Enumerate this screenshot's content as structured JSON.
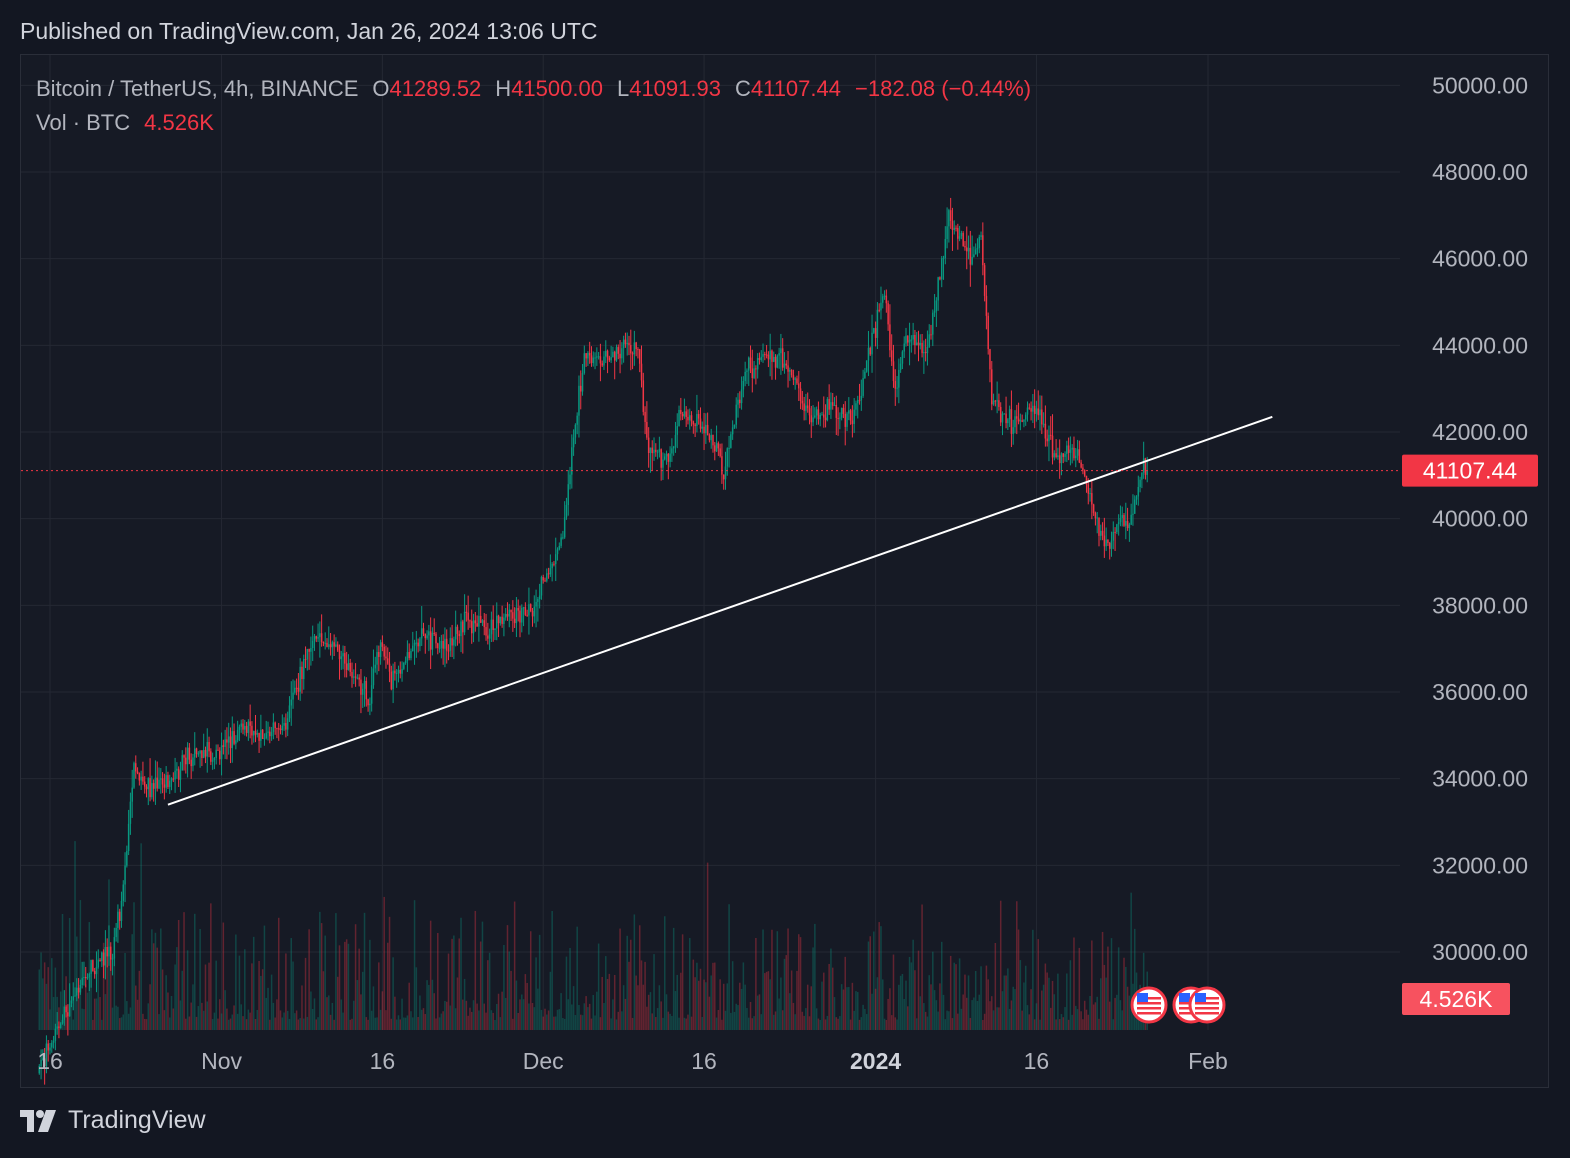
{
  "header": {
    "published": "Published on TradingView.com, Jan 26, 2024 13:06 UTC"
  },
  "legend": {
    "symbol": "Bitcoin / TetherUS, 4h, BINANCE",
    "o_label": "O",
    "o_value": "41289.52",
    "h_label": "H",
    "h_value": "41500.00",
    "l_label": "L",
    "l_value": "41091.93",
    "c_label": "C",
    "c_value": "41107.44",
    "change": "−182.08 (−0.44%)",
    "vol_label": "Vol · BTC",
    "vol_value": "4.526K"
  },
  "price_tag": "41107.44",
  "volume_tag": "4.526K",
  "brand": {
    "name": "TradingView",
    "icon": "tradingview-logo-icon"
  },
  "colors": {
    "up": "#089981",
    "down": "#f23645",
    "background": "#161a25",
    "grid": "#242833",
    "trendline": "#ffffff"
  },
  "chart_data": {
    "type": "candlestick",
    "interval": "4h",
    "y_ticks": [
      "50000.00",
      "48000.00",
      "46000.00",
      "44000.00",
      "42000.00",
      "40000.00",
      "38000.00",
      "36000.00",
      "34000.00",
      "32000.00",
      "30000.00"
    ],
    "ylim": [
      28200,
      50700
    ],
    "x_ticks": [
      {
        "label": "16",
        "date": "2023-10-16",
        "bold": false
      },
      {
        "label": "Nov",
        "date": "2023-11-01",
        "bold": false
      },
      {
        "label": "16",
        "date": "2023-11-16",
        "bold": false
      },
      {
        "label": "Dec",
        "date": "2023-12-01",
        "bold": false
      },
      {
        "label": "16",
        "date": "2023-12-16",
        "bold": false
      },
      {
        "label": "2024",
        "date": "2024-01-01",
        "bold": true
      },
      {
        "label": "16",
        "date": "2024-01-16",
        "bold": false
      },
      {
        "label": "Feb",
        "date": "2024-02-01",
        "bold": false
      }
    ],
    "last_price": 41107.44,
    "trendline": [
      [
        "2023-10-27",
        33400
      ],
      [
        "2024-02-07",
        42350
      ]
    ],
    "price_path": [
      [
        "2023-10-15",
        27200
      ],
      [
        "2023-10-17",
        28300
      ],
      [
        "2023-10-20",
        29600
      ],
      [
        "2023-10-22",
        30000
      ],
      [
        "2023-10-23",
        31500
      ],
      [
        "2023-10-24",
        34300
      ],
      [
        "2023-10-25",
        33800
      ],
      [
        "2023-10-27",
        33900
      ],
      [
        "2023-10-29",
        34500
      ],
      [
        "2023-11-01",
        34600
      ],
      [
        "2023-11-03",
        35200
      ],
      [
        "2023-11-05",
        35000
      ],
      [
        "2023-11-07",
        35200
      ],
      [
        "2023-11-09",
        36800
      ],
      [
        "2023-11-10",
        37200
      ],
      [
        "2023-11-12",
        37000
      ],
      [
        "2023-11-14",
        36200
      ],
      [
        "2023-11-15",
        35800
      ],
      [
        "2023-11-16",
        37300
      ],
      [
        "2023-11-17",
        36200
      ],
      [
        "2023-11-20",
        37300
      ],
      [
        "2023-11-22",
        37000
      ],
      [
        "2023-11-24",
        37700
      ],
      [
        "2023-11-26",
        37400
      ],
      [
        "2023-11-28",
        37800
      ],
      [
        "2023-11-30",
        37800
      ],
      [
        "2023-12-01",
        38500
      ],
      [
        "2023-12-03",
        39500
      ],
      [
        "2023-12-04",
        41800
      ],
      [
        "2023-12-05",
        43800
      ],
      [
        "2023-12-07",
        43600
      ],
      [
        "2023-12-09",
        44000
      ],
      [
        "2023-12-10",
        43900
      ],
      [
        "2023-12-11",
        41400
      ],
      [
        "2023-12-13",
        41500
      ],
      [
        "2023-12-14",
        42500
      ],
      [
        "2023-12-16",
        42200
      ],
      [
        "2023-12-18",
        41100
      ],
      [
        "2023-12-20",
        43400
      ],
      [
        "2023-12-22",
        43800
      ],
      [
        "2023-12-24",
        43600
      ],
      [
        "2023-12-26",
        42300
      ],
      [
        "2023-12-28",
        42600
      ],
      [
        "2023-12-30",
        42300
      ],
      [
        "2024-01-01",
        44200
      ],
      [
        "2024-01-02",
        45300
      ],
      [
        "2024-01-03",
        42800
      ],
      [
        "2024-01-04",
        44200
      ],
      [
        "2024-01-06",
        43900
      ],
      [
        "2024-01-08",
        46900
      ],
      [
        "2024-01-10",
        46100
      ],
      [
        "2024-01-11",
        46500
      ],
      [
        "2024-01-12",
        42700
      ],
      [
        "2024-01-14",
        42200
      ],
      [
        "2024-01-16",
        42700
      ],
      [
        "2024-01-18",
        41300
      ],
      [
        "2024-01-20",
        41600
      ],
      [
        "2024-01-22",
        39700
      ],
      [
        "2024-01-23",
        39300
      ],
      [
        "2024-01-24",
        40000
      ],
      [
        "2024-01-25",
        40000
      ],
      [
        "2024-01-26",
        41107
      ]
    ]
  }
}
